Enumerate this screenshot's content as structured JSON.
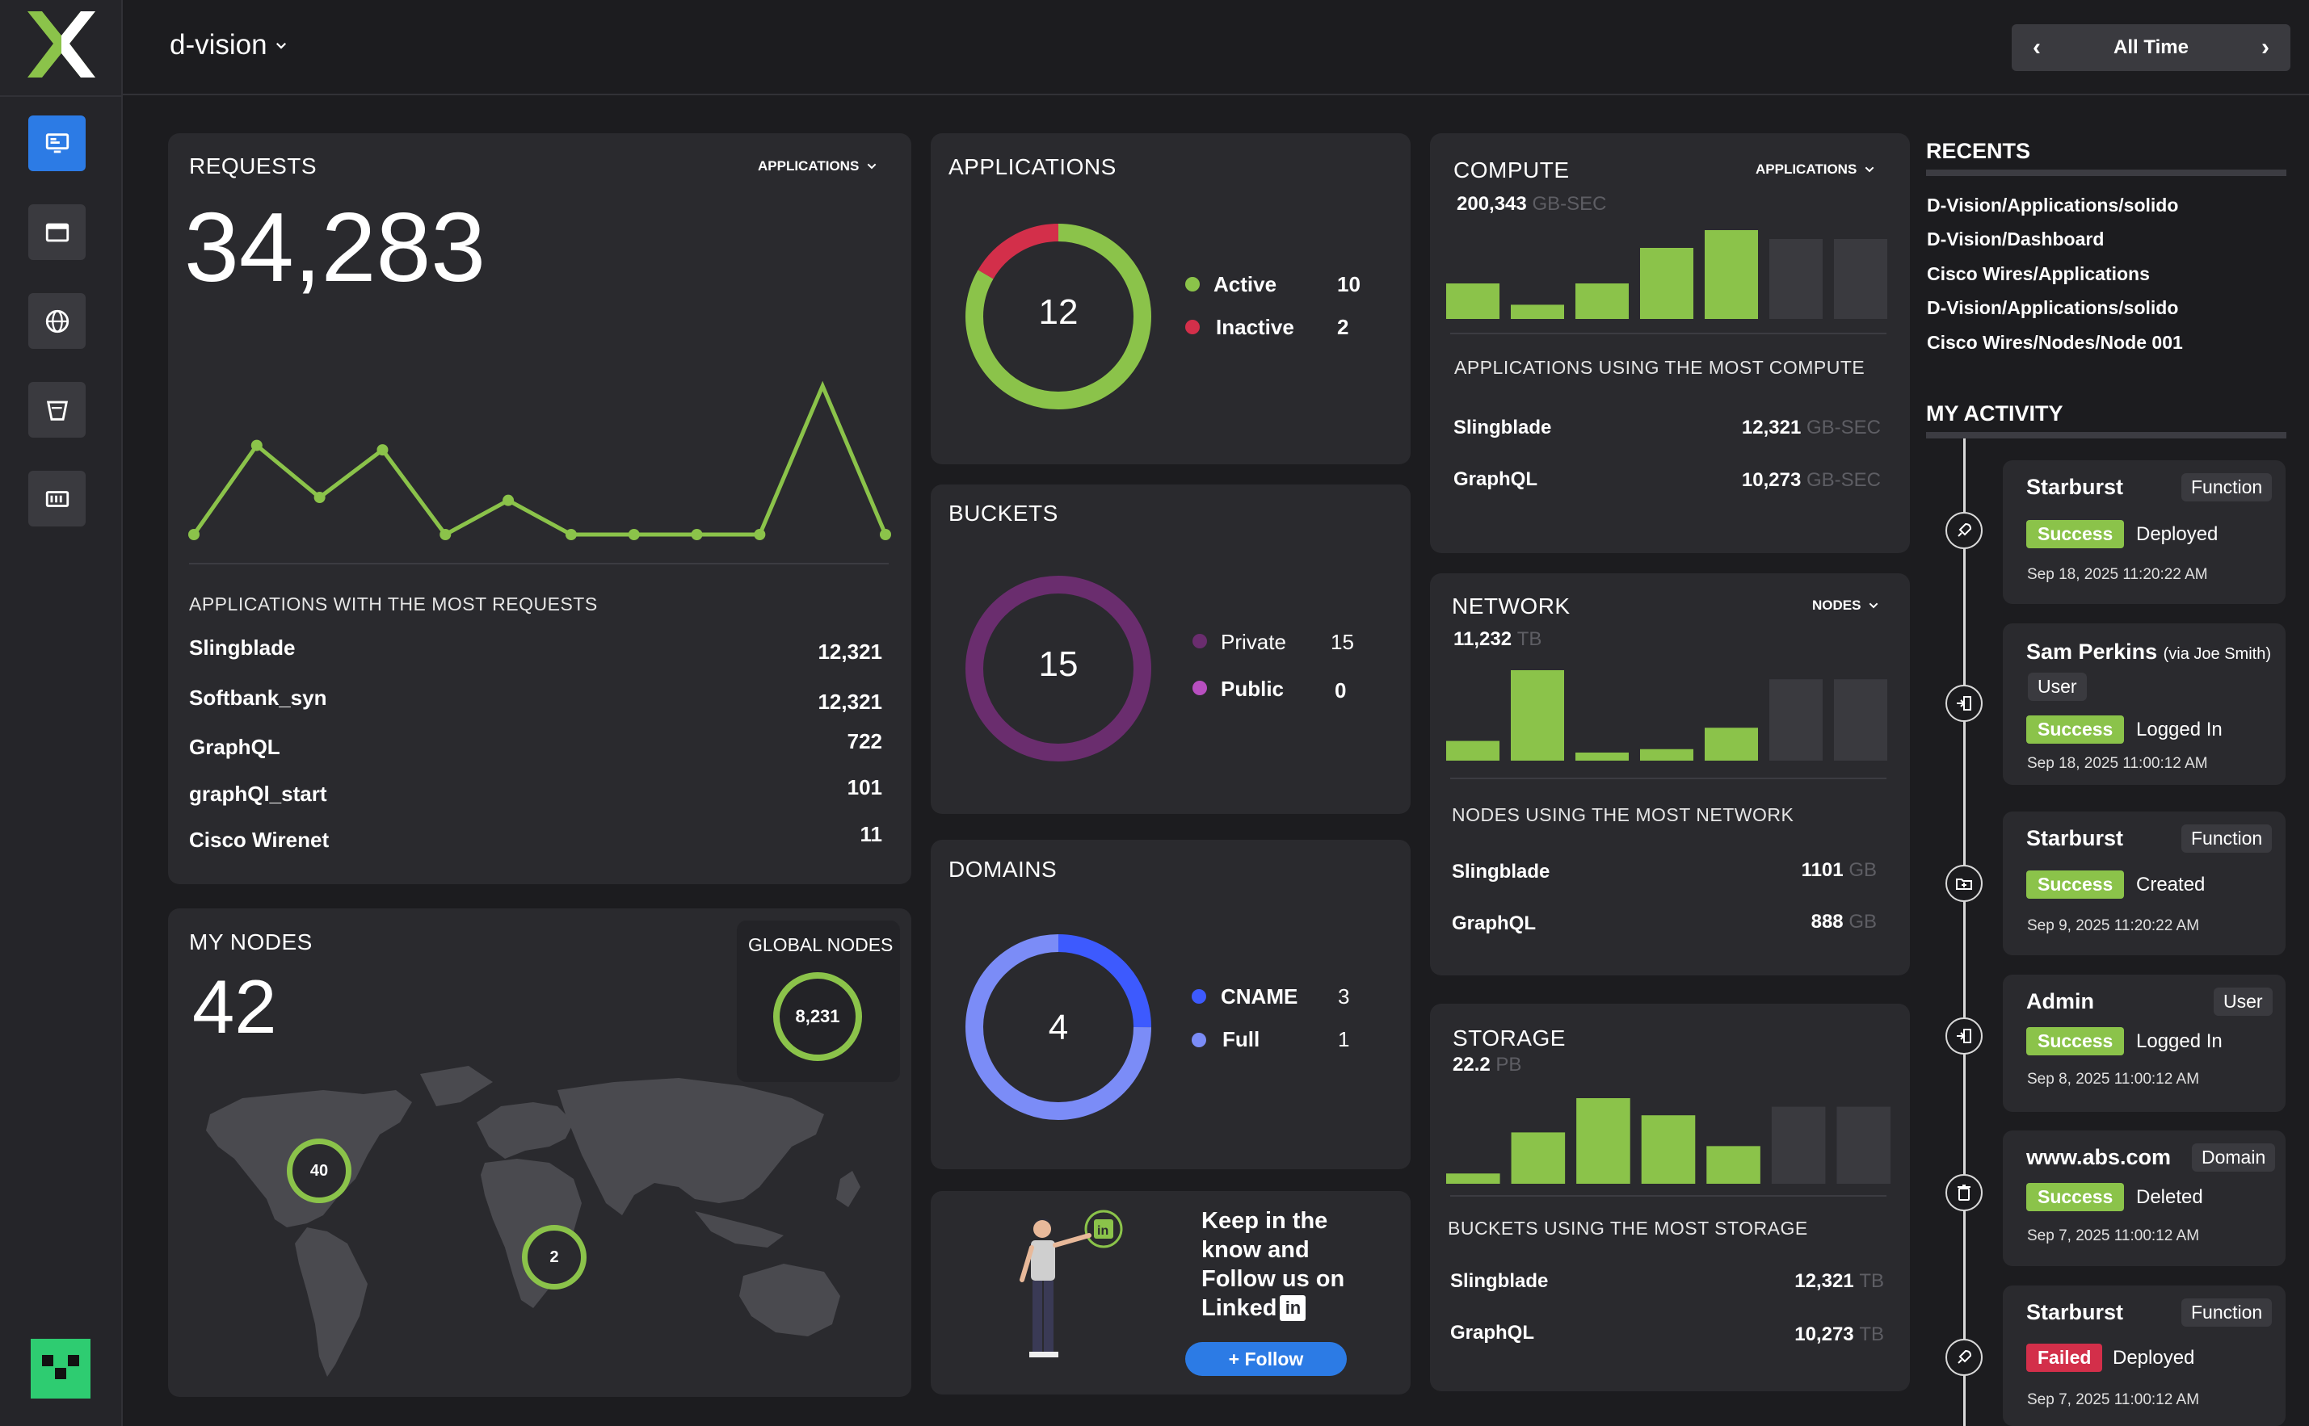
{
  "app": {
    "workspace": "d-vision",
    "time_range": "All Time"
  },
  "colors": {
    "accent_green": "#8bc34a",
    "inactive_red": "#d32f4a",
    "private_purple": "#6a2d6e",
    "public_purple": "#b84fc0",
    "cname_blue": "#3d5afe",
    "full_blue": "#7b8cf7",
    "brand_blue": "#2c7be5"
  },
  "nav": [
    "dashboard-icon",
    "window-icon",
    "globe-icon",
    "bucket-icon",
    "server-icon"
  ],
  "requests": {
    "title": "REQUESTS",
    "dropdown": "APPLICATIONS",
    "total": "34,283",
    "caption": "APPLICATIONS WITH THE MOST REQUESTS",
    "rows": [
      {
        "name": "Slingblade",
        "value": "12,321"
      },
      {
        "name": "Softbank_syn",
        "value": "12,321"
      },
      {
        "name": "GraphQL",
        "value": "722"
      },
      {
        "name": "graphQl_start",
        "value": "101"
      },
      {
        "name": "Cisco Wirenet",
        "value": "11"
      }
    ]
  },
  "applications": {
    "title": "APPLICATIONS",
    "total": "12",
    "items": [
      {
        "label": "Active",
        "value": "10"
      },
      {
        "label": "Inactive",
        "value": "2"
      }
    ]
  },
  "buckets": {
    "title": "BUCKETS",
    "total": "15",
    "items": [
      {
        "label": "Private",
        "value": "15"
      },
      {
        "label": "Public",
        "value": "0"
      }
    ]
  },
  "domains": {
    "title": "DOMAINS",
    "total": "4",
    "items": [
      {
        "label": "CNAME",
        "value": "3"
      },
      {
        "label": "Full",
        "value": "1"
      }
    ]
  },
  "compute": {
    "title": "COMPUTE",
    "dropdown": "APPLICATIONS",
    "total": "200,343",
    "unit": "GB-SEC",
    "caption": "APPLICATIONS USING THE MOST COMPUTE",
    "rows": [
      {
        "name": "Slingblade",
        "value": "12,321",
        "unit": "GB-SEC"
      },
      {
        "name": "GraphQL",
        "value": "10,273",
        "unit": "GB-SEC"
      }
    ]
  },
  "network": {
    "title": "NETWORK",
    "dropdown": "NODES",
    "total": "11,232",
    "unit": "TB",
    "caption": "NODES USING THE MOST NETWORK",
    "rows": [
      {
        "name": "Slingblade",
        "value": "1101",
        "unit": "GB"
      },
      {
        "name": "GraphQL",
        "value": "888",
        "unit": "GB"
      }
    ]
  },
  "storage": {
    "title": "STORAGE",
    "total": "22.2",
    "unit": "PB",
    "caption": "BUCKETS USING THE MOST STORAGE",
    "rows": [
      {
        "name": "Slingblade",
        "value": "12,321",
        "unit": "TB"
      },
      {
        "name": "GraphQL",
        "value": "10,273",
        "unit": "TB"
      }
    ]
  },
  "nodes": {
    "title": "MY NODES",
    "total": "42",
    "global_title": "GLOBAL NODES",
    "global_total": "8,231",
    "clusters": [
      {
        "label": "40"
      },
      {
        "label": "2"
      }
    ]
  },
  "promo": {
    "line1": "Keep in the",
    "line2": "know and",
    "line3": "Follow us on",
    "line4": "Linked",
    "button": "+ Follow"
  },
  "recents": {
    "title": "RECENTS",
    "items": [
      "D-Vision/Applications/solido",
      "D-Vision/Dashboard",
      "Cisco Wires/Applications",
      "D-Vision/Applications/solido",
      "Cisco Wires/Nodes/Node 001"
    ]
  },
  "activity": {
    "title": "MY ACTIVITY",
    "items": [
      {
        "name": "Starburst",
        "via": "",
        "type": "Function",
        "status": "Success",
        "action": "Deployed",
        "time": "Sep 18, 2025  11:20:22 AM",
        "icon": "rocket-icon"
      },
      {
        "name": "Sam Perkins",
        "via": "(via Joe Smith)",
        "type": "User",
        "status": "Success",
        "action": "Logged In",
        "time": "Sep 18, 2025  11:00:12 AM",
        "icon": "login-icon"
      },
      {
        "name": "Starburst",
        "via": "",
        "type": "Function",
        "status": "Success",
        "action": "Created",
        "time": "Sep 9, 2025  11:20:22 AM",
        "icon": "folder-icon"
      },
      {
        "name": "Admin",
        "via": "",
        "type": "User",
        "status": "Success",
        "action": "Logged In",
        "time": "Sep 8, 2025  11:00:12 AM",
        "icon": "login-icon"
      },
      {
        "name": "www.abs.com",
        "via": "",
        "type": "Domain",
        "status": "Success",
        "action": "Deleted",
        "time": "Sep 7, 2025  11:00:12 AM",
        "icon": "trash-icon"
      },
      {
        "name": "Starburst",
        "via": "",
        "type": "Function",
        "status": "Failed",
        "action": "Deployed",
        "time": "Sep 7, 2025  11:00:12 AM",
        "icon": "rocket-icon"
      }
    ]
  },
  "chart_data": [
    {
      "type": "line",
      "title": "REQUESTS",
      "values": [
        0,
        60,
        25,
        57,
        0,
        23,
        0,
        0,
        0,
        0,
        100,
        0
      ],
      "ylim": [
        0,
        100
      ]
    },
    {
      "type": "bar",
      "title": "COMPUTE",
      "values": [
        20,
        8,
        20,
        40,
        50,
        0,
        0
      ],
      "ylim": [
        0,
        50
      ]
    },
    {
      "type": "bar",
      "title": "NETWORK",
      "values": [
        12,
        55,
        4,
        7,
        20,
        0,
        0
      ],
      "ylim": [
        0,
        55
      ]
    },
    {
      "type": "bar",
      "title": "STORAGE",
      "values": [
        6,
        30,
        50,
        40,
        22,
        0,
        0
      ],
      "ylim": [
        0,
        50
      ]
    },
    {
      "type": "pie",
      "title": "APPLICATIONS",
      "categories": [
        "Active",
        "Inactive"
      ],
      "values": [
        10,
        2
      ]
    },
    {
      "type": "pie",
      "title": "BUCKETS",
      "categories": [
        "Private",
        "Public"
      ],
      "values": [
        15,
        0
      ]
    },
    {
      "type": "pie",
      "title": "DOMAINS",
      "categories": [
        "CNAME",
        "Full"
      ],
      "values": [
        3,
        1
      ]
    }
  ]
}
